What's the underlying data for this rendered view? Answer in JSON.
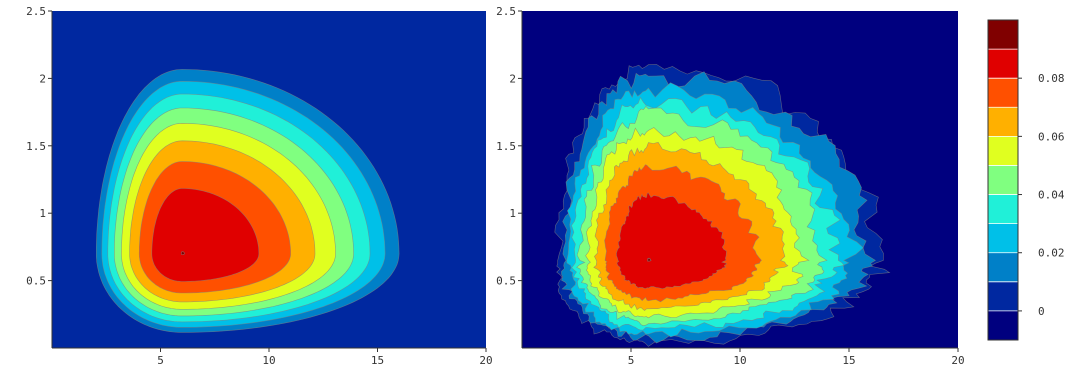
{
  "chart_data": [
    {
      "type": "heatmap",
      "variant": "filled-contour",
      "smooth": true,
      "title": "",
      "xlabel": "",
      "ylabel": "",
      "xlim": [
        0,
        20
      ],
      "ylim": [
        0,
        2.5
      ],
      "x_ticks": [
        5,
        10,
        15,
        20
      ],
      "y_ticks": [
        0.5,
        1,
        1.5,
        2,
        2.5
      ],
      "x_tick_labels": [
        "5",
        "10",
        "15",
        "20"
      ],
      "y_tick_labels": [
        "0.5",
        "1",
        "1.5",
        "2",
        "2.5"
      ],
      "peak": {
        "x": 6,
        "y": 0.7,
        "value": 0.09
      }
    },
    {
      "type": "heatmap",
      "variant": "filled-contour",
      "smooth": false,
      "title": "",
      "xlabel": "",
      "ylabel": "",
      "xlim": [
        0,
        20
      ],
      "ylim": [
        0,
        2.5
      ],
      "x_ticks": [
        5,
        10,
        15,
        20
      ],
      "y_ticks": [
        0.5,
        1,
        1.5,
        2,
        2.5
      ],
      "x_tick_labels": [
        "5",
        "10",
        "15",
        "20"
      ],
      "y_tick_labels": [
        "0.5",
        "1",
        "1.5",
        "2",
        "2.5"
      ],
      "peak": {
        "x": 5.8,
        "y": 0.65,
        "value": 0.09
      }
    }
  ],
  "colorbar": {
    "levels": [
      -0.01,
      0,
      0.01,
      0.02,
      0.03,
      0.04,
      0.05,
      0.06,
      0.07,
      0.08,
      0.09,
      0.1
    ],
    "colors": [
      "#00007f",
      "#0028a0",
      "#0080c8",
      "#00c0e8",
      "#20f0d8",
      "#80ff80",
      "#e0ff20",
      "#ffb000",
      "#ff5000",
      "#e00000",
      "#800000"
    ],
    "tick_values": [
      0,
      0.02,
      0.04,
      0.06,
      0.08
    ],
    "tick_labels": [
      "0",
      "0.02",
      "0.04",
      "0.06",
      "0.08"
    ],
    "contour_line_color": "#808080"
  }
}
